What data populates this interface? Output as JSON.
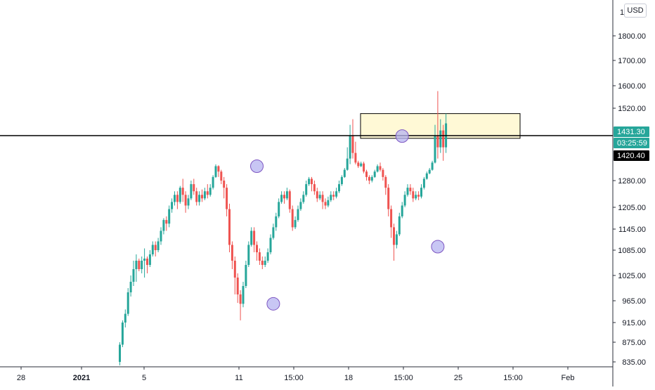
{
  "currency_button": "USD",
  "colors": {
    "up": "#26a69a",
    "down": "#ef5350",
    "axis_line": "#2a2e39",
    "zone_fill": "#fff9d6",
    "zone_stroke": "#000000",
    "circle_fill": "#b6b3f0",
    "circle_stroke": "#7e57c2",
    "label_last": "#26a69a",
    "label_level": "#000000"
  },
  "chart_data": {
    "type": "candlestick",
    "y_axis_ticks": [
      {
        "label": "835.00",
        "value": 835
      },
      {
        "label": "875.00",
        "value": 875
      },
      {
        "label": "915.00",
        "value": 915
      },
      {
        "label": "965.00",
        "value": 965
      },
      {
        "label": "1025.00",
        "value": 1025
      },
      {
        "label": "1085.00",
        "value": 1085
      },
      {
        "label": "1145.00",
        "value": 1145
      },
      {
        "label": "1205.00",
        "value": 1205
      },
      {
        "label": "1280.00",
        "value": 1280
      },
      {
        "label": "1520.00",
        "value": 1520
      },
      {
        "label": "1600.00",
        "value": 1600
      },
      {
        "label": "1700.00",
        "value": 1700
      },
      {
        "label": "1800.00",
        "value": 1800
      },
      {
        "label": "1900.00",
        "value": 1900
      }
    ],
    "y_axis_top_partial_label": "1",
    "x_axis_ticks": [
      {
        "label": "28",
        "bold": false
      },
      {
        "label": "2021",
        "bold": true
      },
      {
        "label": "5",
        "bold": false
      },
      {
        "label": "11",
        "bold": false
      },
      {
        "label": "15:00",
        "bold": false
      },
      {
        "label": "18",
        "bold": false
      },
      {
        "label": "15:00",
        "bold": false
      },
      {
        "label": "25",
        "bold": false
      },
      {
        "label": "15:00",
        "bold": false
      },
      {
        "label": "Feb",
        "bold": false
      }
    ],
    "price_labels": {
      "last_price": "1431.30",
      "countdown": "03:25:59",
      "horizontal_level": "1420.40"
    },
    "horizontal_line_value": 1420.4,
    "resistance_zone": {
      "low": 1418,
      "high": 1440
    },
    "circled_points": [
      {
        "candle": 50,
        "price": 1360
      },
      {
        "candle": 56,
        "price": 958
      },
      {
        "candle": 103,
        "price": 1420
      },
      {
        "candle": 116,
        "price": 1095
      }
    ],
    "candles": [
      [
        835,
        870,
        828,
        875
      ],
      [
        870,
        915,
        865,
        920
      ],
      [
        915,
        935,
        905,
        945
      ],
      [
        935,
        985,
        930,
        995
      ],
      [
        985,
        1010,
        975,
        1025
      ],
      [
        1010,
        1040,
        1000,
        1060
      ],
      [
        1040,
        1060,
        1010,
        1075
      ],
      [
        1060,
        1040,
        1035,
        1065
      ],
      [
        1040,
        1060,
        1030,
        1070
      ],
      [
        1060,
        1065,
        1020,
        1090
      ],
      [
        1065,
        1050,
        1030,
        1070
      ],
      [
        1050,
        1075,
        1045,
        1085
      ],
      [
        1075,
        1100,
        1070,
        1110
      ],
      [
        1100,
        1085,
        1070,
        1110
      ],
      [
        1085,
        1110,
        1080,
        1120
      ],
      [
        1110,
        1140,
        1100,
        1150
      ],
      [
        1140,
        1170,
        1130,
        1175
      ],
      [
        1170,
        1160,
        1140,
        1180
      ],
      [
        1160,
        1200,
        1150,
        1210
      ],
      [
        1200,
        1220,
        1190,
        1230
      ],
      [
        1220,
        1240,
        1210,
        1250
      ],
      [
        1240,
        1220,
        1200,
        1250
      ],
      [
        1220,
        1260,
        1215,
        1265
      ],
      [
        1260,
        1240,
        1220,
        1290
      ],
      [
        1240,
        1210,
        1190,
        1250
      ],
      [
        1210,
        1230,
        1200,
        1240
      ],
      [
        1230,
        1270,
        1225,
        1280
      ],
      [
        1270,
        1250,
        1240,
        1290
      ],
      [
        1250,
        1220,
        1210,
        1260
      ],
      [
        1220,
        1240,
        1210,
        1250
      ],
      [
        1240,
        1230,
        1220,
        1255
      ],
      [
        1230,
        1250,
        1225,
        1260
      ],
      [
        1250,
        1240,
        1230,
        1270
      ],
      [
        1240,
        1260,
        1235,
        1270
      ],
      [
        1260,
        1300,
        1255,
        1310
      ],
      [
        1300,
        1360,
        1295,
        1370
      ],
      [
        1360,
        1330,
        1300,
        1365
      ],
      [
        1330,
        1280,
        1270,
        1340
      ],
      [
        1280,
        1260,
        1230,
        1300
      ],
      [
        1260,
        1200,
        1180,
        1270
      ],
      [
        1200,
        1100,
        1080,
        1215
      ],
      [
        1100,
        1060,
        1040,
        1110
      ],
      [
        1060,
        1020,
        980,
        1070
      ],
      [
        1020,
        980,
        960,
        1030
      ],
      [
        980,
        958,
        920,
        990
      ],
      [
        958,
        1000,
        950,
        1010
      ],
      [
        1000,
        1050,
        995,
        1060
      ],
      [
        1050,
        1100,
        1045,
        1110
      ],
      [
        1100,
        1140,
        1095,
        1150
      ],
      [
        1140,
        1100,
        1080,
        1150
      ],
      [
        1100,
        1080,
        1060,
        1110
      ],
      [
        1080,
        1060,
        1050,
        1090
      ],
      [
        1060,
        1050,
        1040,
        1070
      ],
      [
        1050,
        1060,
        1045,
        1070
      ],
      [
        1060,
        1080,
        1055,
        1090
      ],
      [
        1080,
        1120,
        1075,
        1130
      ],
      [
        1120,
        1150,
        1115,
        1160
      ],
      [
        1150,
        1180,
        1140,
        1190
      ],
      [
        1180,
        1220,
        1175,
        1230
      ],
      [
        1220,
        1240,
        1215,
        1250
      ],
      [
        1240,
        1230,
        1215,
        1250
      ],
      [
        1230,
        1250,
        1225,
        1260
      ],
      [
        1250,
        1200,
        1190,
        1255
      ],
      [
        1200,
        1150,
        1140,
        1210
      ],
      [
        1150,
        1170,
        1145,
        1180
      ],
      [
        1170,
        1200,
        1165,
        1210
      ],
      [
        1200,
        1220,
        1195,
        1230
      ],
      [
        1220,
        1240,
        1215,
        1250
      ],
      [
        1240,
        1270,
        1235,
        1280
      ],
      [
        1270,
        1290,
        1265,
        1300
      ],
      [
        1290,
        1270,
        1250,
        1300
      ],
      [
        1270,
        1250,
        1240,
        1280
      ],
      [
        1250,
        1230,
        1220,
        1260
      ],
      [
        1230,
        1240,
        1225,
        1250
      ],
      [
        1240,
        1220,
        1200,
        1250
      ],
      [
        1220,
        1210,
        1200,
        1230
      ],
      [
        1210,
        1225,
        1205,
        1235
      ],
      [
        1225,
        1240,
        1220,
        1250
      ],
      [
        1240,
        1235,
        1225,
        1250
      ],
      [
        1235,
        1250,
        1230,
        1260
      ],
      [
        1250,
        1270,
        1245,
        1280
      ],
      [
        1270,
        1300,
        1265,
        1310
      ],
      [
        1300,
        1340,
        1295,
        1350
      ],
      [
        1340,
        1400,
        1335,
        1410
      ],
      [
        1400,
        1420,
        1395,
        1430
      ],
      [
        1420,
        1405,
        1400,
        1435
      ],
      [
        1405,
        1380,
        1370,
        1415
      ],
      [
        1380,
        1360,
        1350,
        1390
      ],
      [
        1360,
        1375,
        1355,
        1385
      ],
      [
        1375,
        1330,
        1320,
        1385
      ],
      [
        1330,
        1300,
        1280,
        1340
      ],
      [
        1300,
        1280,
        1270,
        1310
      ],
      [
        1280,
        1300,
        1275,
        1310
      ],
      [
        1300,
        1330,
        1295,
        1340
      ],
      [
        1330,
        1360,
        1325,
        1370
      ],
      [
        1360,
        1340,
        1330,
        1380
      ],
      [
        1340,
        1300,
        1280,
        1350
      ],
      [
        1300,
        1260,
        1240,
        1310
      ],
      [
        1260,
        1200,
        1180,
        1270
      ],
      [
        1200,
        1150,
        1120,
        1210
      ],
      [
        1150,
        1100,
        1060,
        1160
      ],
      [
        1100,
        1130,
        1090,
        1140
      ],
      [
        1130,
        1180,
        1125,
        1190
      ],
      [
        1180,
        1210,
        1175,
        1220
      ],
      [
        1210,
        1240,
        1205,
        1250
      ],
      [
        1240,
        1260,
        1235,
        1270
      ],
      [
        1260,
        1250,
        1240,
        1270
      ],
      [
        1250,
        1230,
        1220,
        1260
      ],
      [
        1230,
        1240,
        1225,
        1250
      ],
      [
        1240,
        1235,
        1225,
        1250
      ],
      [
        1235,
        1260,
        1230,
        1270
      ],
      [
        1260,
        1290,
        1255,
        1300
      ],
      [
        1290,
        1320,
        1285,
        1330
      ],
      [
        1320,
        1340,
        1315,
        1350
      ],
      [
        1340,
        1380,
        1335,
        1390
      ],
      [
        1380,
        1420,
        1375,
        1430
      ],
      [
        1420,
        1410,
        1400,
        1460
      ],
      [
        1410,
        1425,
        1405,
        1435
      ],
      [
        1425,
        1410,
        1390,
        1430
      ],
      [
        1410,
        1431.3,
        1405,
        1440
      ]
    ]
  }
}
